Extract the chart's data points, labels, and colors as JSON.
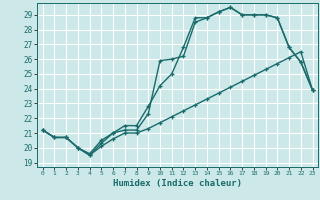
{
  "xlabel": "Humidex (Indice chaleur)",
  "bg_color": "#cce8e8",
  "grid_color": "#ffffff",
  "line_color": "#1a6b6b",
  "xlim": [
    -0.5,
    23.5
  ],
  "ylim": [
    18.7,
    29.8
  ],
  "yticks": [
    19,
    20,
    21,
    22,
    23,
    24,
    25,
    26,
    27,
    28,
    29
  ],
  "xticks": [
    0,
    1,
    2,
    3,
    4,
    5,
    6,
    7,
    8,
    9,
    10,
    11,
    12,
    13,
    14,
    15,
    16,
    17,
    18,
    19,
    20,
    21,
    22,
    23
  ],
  "line1_x": [
    0,
    1,
    2,
    3,
    4,
    5,
    6,
    7,
    8,
    9,
    10,
    11,
    12,
    13,
    14,
    15,
    16,
    17,
    18,
    19,
    20,
    21,
    22,
    23
  ],
  "line1_y": [
    21.2,
    20.7,
    20.7,
    20.0,
    19.6,
    20.5,
    21.0,
    21.2,
    21.2,
    22.3,
    25.9,
    26.0,
    26.2,
    28.5,
    28.8,
    29.2,
    29.5,
    29.0,
    29.0,
    29.0,
    28.8,
    26.8,
    25.8,
    23.9
  ],
  "line2_x": [
    0,
    1,
    2,
    3,
    4,
    5,
    6,
    7,
    8,
    9,
    10,
    11,
    12,
    13,
    14,
    15,
    16,
    17,
    18,
    19,
    20,
    21,
    22,
    23
  ],
  "line2_y": [
    21.2,
    20.7,
    20.7,
    20.0,
    19.5,
    20.3,
    21.0,
    21.5,
    21.5,
    22.8,
    24.2,
    25.0,
    26.8,
    28.8,
    28.8,
    29.2,
    29.5,
    29.0,
    29.0,
    29.0,
    28.8,
    26.8,
    25.8,
    23.9
  ],
  "line3_x": [
    0,
    1,
    2,
    3,
    4,
    5,
    6,
    7,
    8,
    9,
    10,
    11,
    12,
    13,
    14,
    15,
    16,
    17,
    18,
    19,
    20,
    21,
    22,
    23
  ],
  "line3_y": [
    21.2,
    20.7,
    20.7,
    20.0,
    19.5,
    20.1,
    20.6,
    21.0,
    21.0,
    21.3,
    21.7,
    22.1,
    22.5,
    22.9,
    23.3,
    23.7,
    24.1,
    24.5,
    24.9,
    25.3,
    25.7,
    26.1,
    26.5,
    23.9
  ],
  "marker": "+",
  "markersize": 3.5,
  "linewidth": 1.0
}
